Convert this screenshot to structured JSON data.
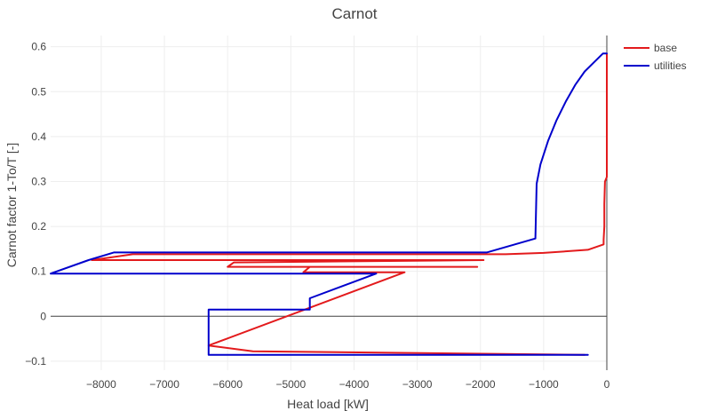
{
  "chart_data": {
    "type": "line",
    "title": "Carnot",
    "xlabel": "Heat load [kW]",
    "ylabel": "Carnot factor 1-To/T [-]",
    "xlim": [
      -8800,
      0
    ],
    "ylim": [
      -0.12,
      0.625
    ],
    "x_ticks": [
      -8000,
      -7000,
      -6000,
      -5000,
      -4000,
      -3000,
      -2000,
      -1000,
      0
    ],
    "y_ticks": [
      -0.1,
      0,
      0.1,
      0.2,
      0.3,
      0.4,
      0.5,
      0.6
    ],
    "x_tick_labels": [
      "−8000",
      "−7000",
      "−6000",
      "−5000",
      "−4000",
      "−3000",
      "−2000",
      "−1000",
      "0"
    ],
    "y_tick_labels": [
      "−0.1",
      "0",
      "0.1",
      "0.2",
      "0.3",
      "0.4",
      "0.5",
      "0.6"
    ],
    "grid": true,
    "zero_lines": true,
    "legend_position": "top-right",
    "series": [
      {
        "name": "base",
        "color": "#e31a1c",
        "x": [
          0,
          0,
          0,
          -30,
          -40,
          -40,
          -50,
          -50,
          -300,
          -1000,
          -1600,
          -7500,
          -8150,
          -1950,
          -5900,
          -6000,
          -2050,
          -4700,
          -4800,
          -3200,
          -6300,
          -5600,
          -350
        ],
        "y": [
          0.585,
          0.45,
          0.31,
          0.3,
          0.25,
          0.2,
          0.17,
          0.16,
          0.148,
          0.141,
          0.138,
          0.138,
          0.125,
          0.125,
          0.12,
          0.11,
          0.11,
          0.11,
          0.098,
          0.098,
          -0.065,
          -0.078,
          -0.086
        ]
      },
      {
        "name": "utilities",
        "color": "#0000cc",
        "x": [
          -300,
          -6300,
          -6300,
          -4700,
          -4700,
          -3650,
          -8800,
          -8200,
          -7800,
          -1900,
          -1130,
          -1110,
          -1050,
          -930,
          -800,
          -650,
          -500,
          -350,
          -200,
          -60,
          0
        ],
        "y": [
          -0.086,
          -0.086,
          0.015,
          0.015,
          0.04,
          0.095,
          0.095,
          0.125,
          0.142,
          0.142,
          0.173,
          0.295,
          0.338,
          0.39,
          0.435,
          0.478,
          0.515,
          0.545,
          0.566,
          0.585,
          0.585
        ]
      }
    ]
  }
}
